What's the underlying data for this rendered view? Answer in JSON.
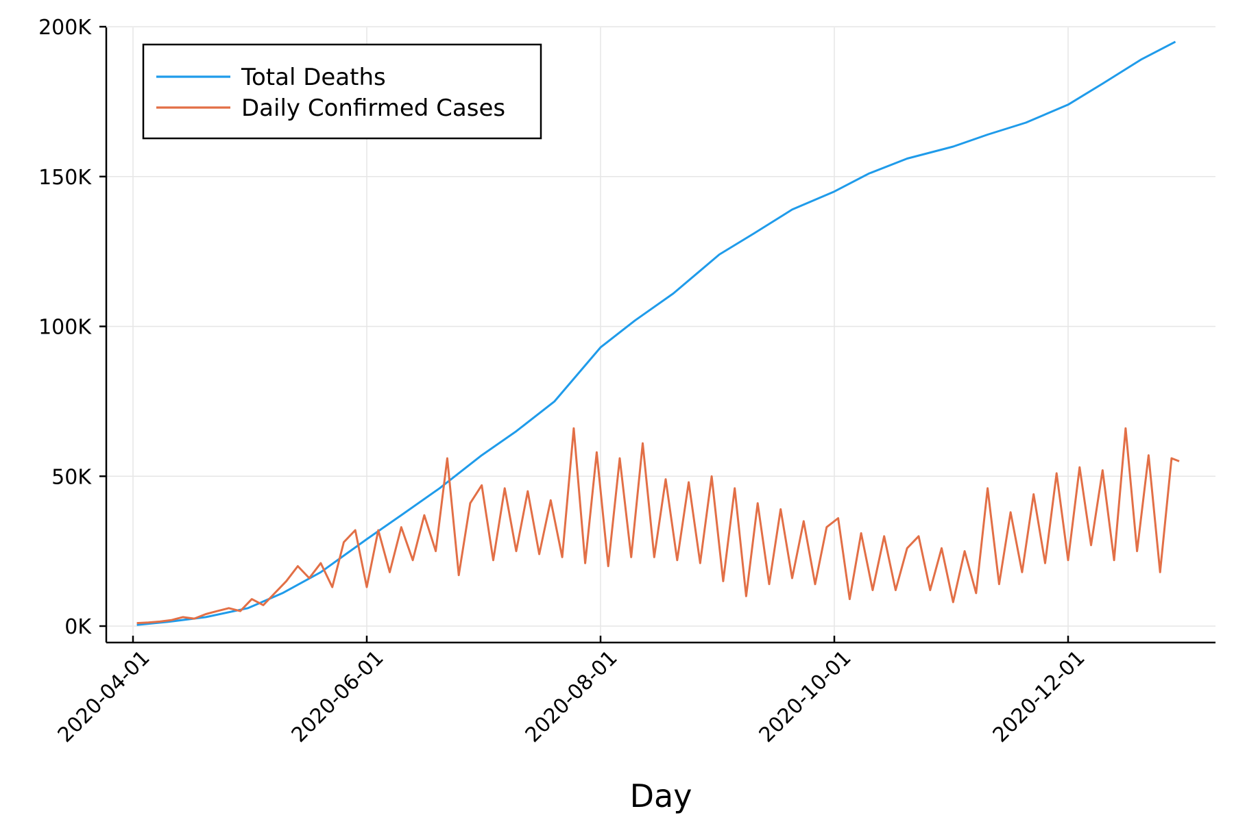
{
  "chart_data": {
    "type": "line",
    "title": "",
    "xlabel": "Day",
    "ylabel": "",
    "x_ticks": [
      "2020-04-01",
      "2020-06-01",
      "2020-08-01",
      "2020-10-01",
      "2020-12-01"
    ],
    "y_ticks": [
      "0K",
      "50K",
      "100K",
      "150K",
      "200K"
    ],
    "x_range": [
      "2020-04-01",
      "2020-12-31"
    ],
    "ylim": [
      0,
      200000
    ],
    "grid": true,
    "legend_position": "top-left",
    "colors": {
      "Total Deaths": "#1f9bea",
      "Daily Confirmed Cases": "#e26f46"
    },
    "series": [
      {
        "name": "Total Deaths",
        "x": [
          "2020-04-02",
          "2020-04-10",
          "2020-04-20",
          "2020-05-01",
          "2020-05-10",
          "2020-05-20",
          "2020-06-01",
          "2020-06-10",
          "2020-06-20",
          "2020-07-01",
          "2020-07-10",
          "2020-07-20",
          "2020-08-01",
          "2020-08-10",
          "2020-08-20",
          "2020-09-01",
          "2020-09-10",
          "2020-09-20",
          "2020-10-01",
          "2020-10-10",
          "2020-10-20",
          "2020-11-01",
          "2020-11-10",
          "2020-11-20",
          "2020-12-01",
          "2020-12-10",
          "2020-12-20",
          "2020-12-29"
        ],
        "values": [
          400,
          1400,
          3000,
          6000,
          11000,
          18000,
          29000,
          37000,
          46000,
          57000,
          65000,
          75000,
          93000,
          102000,
          111000,
          124000,
          131000,
          139000,
          145000,
          151000,
          156000,
          160000,
          164000,
          168000,
          174000,
          181000,
          189000,
          195000
        ]
      },
      {
        "name": "Daily Confirmed Cases",
        "x": [
          "2020-04-02",
          "2020-04-05",
          "2020-04-08",
          "2020-04-11",
          "2020-04-14",
          "2020-04-17",
          "2020-04-20",
          "2020-04-23",
          "2020-04-26",
          "2020-04-29",
          "2020-05-02",
          "2020-05-05",
          "2020-05-08",
          "2020-05-11",
          "2020-05-14",
          "2020-05-17",
          "2020-05-20",
          "2020-05-23",
          "2020-05-26",
          "2020-05-29",
          "2020-06-01",
          "2020-06-04",
          "2020-06-07",
          "2020-06-10",
          "2020-06-13",
          "2020-06-16",
          "2020-06-19",
          "2020-06-22",
          "2020-06-25",
          "2020-06-28",
          "2020-07-01",
          "2020-07-04",
          "2020-07-07",
          "2020-07-10",
          "2020-07-13",
          "2020-07-16",
          "2020-07-19",
          "2020-07-22",
          "2020-07-25",
          "2020-07-28",
          "2020-07-31",
          "2020-08-03",
          "2020-08-06",
          "2020-08-09",
          "2020-08-12",
          "2020-08-15",
          "2020-08-18",
          "2020-08-21",
          "2020-08-24",
          "2020-08-27",
          "2020-08-30",
          "2020-09-02",
          "2020-09-05",
          "2020-09-08",
          "2020-09-11",
          "2020-09-14",
          "2020-09-17",
          "2020-09-20",
          "2020-09-23",
          "2020-09-26",
          "2020-09-29",
          "2020-10-02",
          "2020-10-05",
          "2020-10-08",
          "2020-10-11",
          "2020-10-14",
          "2020-10-17",
          "2020-10-20",
          "2020-10-23",
          "2020-10-26",
          "2020-10-29",
          "2020-11-01",
          "2020-11-04",
          "2020-11-07",
          "2020-11-10",
          "2020-11-13",
          "2020-11-16",
          "2020-11-19",
          "2020-11-22",
          "2020-11-25",
          "2020-11-28",
          "2020-12-01",
          "2020-12-04",
          "2020-12-07",
          "2020-12-10",
          "2020-12-13",
          "2020-12-16",
          "2020-12-19",
          "2020-12-22",
          "2020-12-25",
          "2020-12-28",
          "2020-12-30"
        ],
        "values": [
          1000,
          1200,
          1500,
          2000,
          3000,
          2500,
          4000,
          5000,
          6000,
          5000,
          9000,
          7000,
          11000,
          15000,
          20000,
          16000,
          21000,
          13000,
          28000,
          32000,
          13000,
          32000,
          18000,
          33000,
          22000,
          37000,
          25000,
          56000,
          17000,
          41000,
          47000,
          22000,
          46000,
          25000,
          45000,
          24000,
          42000,
          23000,
          66000,
          21000,
          58000,
          20000,
          56000,
          23000,
          61000,
          23000,
          49000,
          22000,
          48000,
          21000,
          50000,
          15000,
          46000,
          10000,
          41000,
          14000,
          39000,
          16000,
          35000,
          14000,
          33000,
          36000,
          9000,
          31000,
          12000,
          30000,
          12000,
          26000,
          30000,
          12000,
          26000,
          8000,
          25000,
          11000,
          46000,
          14000,
          38000,
          18000,
          44000,
          21000,
          51000,
          22000,
          53000,
          27000,
          52000,
          22000,
          66000,
          25000,
          57000,
          18000,
          56000,
          55000
        ]
      }
    ]
  }
}
